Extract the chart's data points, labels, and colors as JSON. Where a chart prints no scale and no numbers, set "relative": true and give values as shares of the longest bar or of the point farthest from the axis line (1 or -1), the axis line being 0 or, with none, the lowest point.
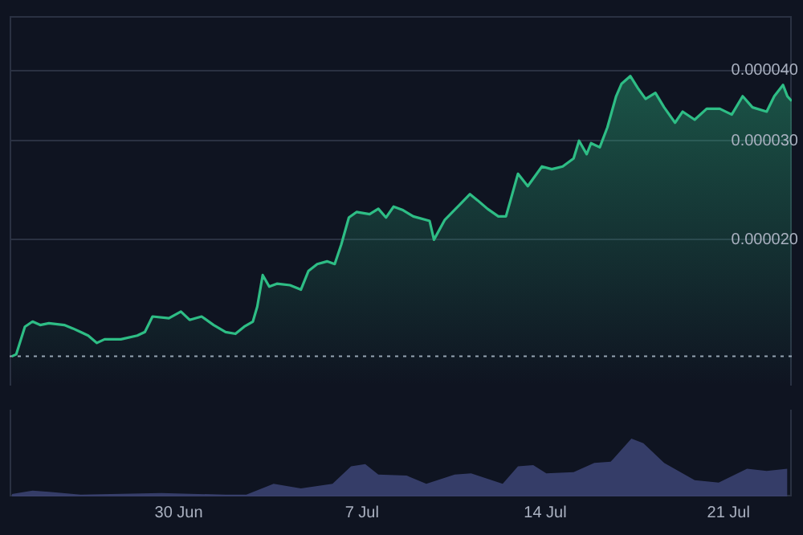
{
  "chart_data": [
    {
      "type": "area",
      "color": "#2ebd85",
      "log": "y",
      "grid": "y",
      "tick_labels": "y",
      "x": [
        "--06-23T15:00",
        "--06-23T19:00",
        "--06-24T03:00",
        "--06-24T10:00",
        "--06-24T17:00",
        "--06-25T01:00",
        "--06-25T15:00",
        "--06-25T23:00",
        "--06-26T06:00",
        "--06-26T13:00",
        "--06-26T21:00",
        "--06-27T04:00",
        "--06-27T19:00",
        "--06-28T10:00",
        "--06-28T17:00",
        "--06-29T00:00",
        "--06-29T15:00",
        "--06-30T02:00",
        "--06-30T10:00",
        "--06-30T21:00",
        "--07-01T08:00",
        "--07-01T19:00",
        "--07-02T04:00",
        "--07-02T12:00",
        "--07-02T20:00",
        "--07-03T00:00",
        "--07-03T05:00",
        "--07-03T11:00",
        "--07-03T18:00",
        "--07-04T06:00",
        "--07-04T16:00",
        "--07-04T23:00",
        "--07-05T07:00",
        "--07-05T16:00",
        "--07-05T23:00",
        "--07-06T05:00",
        "--07-06T12:00",
        "--07-06T19:00",
        "--07-07T07:00",
        "--07-07T15:00",
        "--07-07T22:00",
        "--07-08T05:00",
        "--07-08T13:00",
        "--07-08T23:00",
        "--07-09T14:00",
        "--07-09T18:00",
        "--07-10T04:00",
        "--07-10T13:00",
        "--07-11T03:00",
        "--07-11T10:00",
        "--07-11T19:00",
        "--07-12T05:00",
        "--07-12T12:00",
        "--07-12T23:00",
        "--07-13T08:00",
        "--07-13T21:00",
        "--07-14T06:00",
        "--07-14T16:00",
        "--07-15T02:00",
        "--07-15T07:00",
        "--07-15T14:00",
        "--07-15T18:00",
        "--07-16T02:00",
        "--07-16T09:00",
        "--07-16T17:00",
        "--07-16T22:00",
        "--07-17T06:00",
        "--07-17T13:00",
        "--07-17T20:00",
        "--07-18T05:00",
        "--07-18T13:00",
        "--07-18T23:00",
        "--07-19T06:00",
        "--07-19T17:00",
        "--07-20T04:00",
        "--07-20T16:00",
        "--07-21T03:00",
        "--07-21T13:00",
        "--07-21T22:00",
        "--07-22T11:00",
        "--07-22T18:00",
        "--07-23T02:00",
        "--07-23T06:00",
        "--07-23T10:00"
      ],
      "values": [
        1.24e-05,
        1.25e-05,
        1.4e-05,
        1.43e-05,
        1.41e-05,
        1.42e-05,
        1.41e-05,
        1.39e-05,
        1.37e-05,
        1.35e-05,
        1.31e-05,
        1.33e-05,
        1.33e-05,
        1.35e-05,
        1.37e-05,
        1.46e-05,
        1.45e-05,
        1.49e-05,
        1.44e-05,
        1.46e-05,
        1.41e-05,
        1.37e-05,
        1.36e-05,
        1.4e-05,
        1.43e-05,
        1.52e-05,
        1.73e-05,
        1.65e-05,
        1.67e-05,
        1.66e-05,
        1.63e-05,
        1.76e-05,
        1.81e-05,
        1.83e-05,
        1.81e-05,
        1.96e-05,
        2.19e-05,
        2.24e-05,
        2.22e-05,
        2.27e-05,
        2.19e-05,
        2.29e-05,
        2.26e-05,
        2.2e-05,
        2.16e-05,
        2e-05,
        2.17e-05,
        2.26e-05,
        2.41e-05,
        2.35e-05,
        2.27e-05,
        2.2e-05,
        2.2e-05,
        2.62e-05,
        2.49e-05,
        2.7e-05,
        2.67e-05,
        2.7e-05,
        2.79e-05,
        3e-05,
        2.84e-05,
        2.97e-05,
        2.92e-05,
        3.17e-05,
        3.6e-05,
        3.79e-05,
        3.91e-05,
        3.72e-05,
        3.56e-05,
        3.65e-05,
        3.44e-05,
        3.23e-05,
        3.38e-05,
        3.27e-05,
        3.42e-05,
        3.42e-05,
        3.34e-05,
        3.6e-05,
        3.44e-05,
        3.38e-05,
        3.6e-05,
        3.77e-05,
        3.6e-05,
        3.53e-05
      ],
      "xlim": [
        "--06-23T13:00",
        "--07-23T10:00"
      ],
      "ylim": [
        1.1e-05,
        5e-05
      ],
      "yticks": [
        {
          "value": 2e-05,
          "label": "0.000020"
        },
        {
          "value": 3e-05,
          "label": "0.000030"
        },
        {
          "value": 4e-05,
          "label": "0.000040"
        }
      ],
      "ref_lines": [
        {
          "axis": "y",
          "value": 1.24e-05,
          "color": "#9aa3b5",
          "line_style": "dotted"
        }
      ]
    },
    {
      "type": "area",
      "color": "#3a4170",
      "relative": true,
      "tick_labels": "x",
      "x": [
        "--06-23T15:00",
        "--06-24T10:00",
        "--06-25T01:00",
        "--06-26T06:00",
        "--06-29T08:00",
        "--07-01T19:00",
        "--07-02T14:00",
        "--07-03T15:00",
        "--07-04T16:00",
        "--07-05T21:00",
        "--07-06T14:00",
        "--07-07T03:00",
        "--07-07T15:00",
        "--07-08T17:00",
        "--07-09T11:00",
        "--07-10T13:00",
        "--07-11T04:00",
        "--07-12T09:00",
        "--07-12T23:00",
        "--07-13T13:00",
        "--07-14T01:00",
        "--07-15T02:00",
        "--07-15T21:00",
        "--07-16T12:00",
        "--07-17T07:00",
        "--07-17T18:00",
        "--07-18T13:00",
        "--07-19T17:00",
        "--07-20T15:00",
        "--07-21T17:00",
        "--07-22T11:00",
        "--07-23T06:00"
      ],
      "values": [
        0.04,
        0.1,
        0.08,
        0.03,
        0.06,
        0.03,
        0.03,
        0.22,
        0.14,
        0.22,
        0.52,
        0.56,
        0.38,
        0.36,
        0.22,
        0.38,
        0.4,
        0.22,
        0.52,
        0.54,
        0.4,
        0.42,
        0.58,
        0.6,
        1,
        0.92,
        0.58,
        0.28,
        0.24,
        0.48,
        0.44,
        0.48
      ],
      "xlim": [
        "--06-23T13:00",
        "--07-23T10:00"
      ],
      "xticks": [
        {
          "value": "--06-30",
          "label": "30 Jun"
        },
        {
          "value": "--07-07",
          "label": "7 Jul"
        },
        {
          "value": "--07-14",
          "label": "14 Jul"
        },
        {
          "value": "--07-21",
          "label": "21 Jul"
        }
      ]
    }
  ]
}
